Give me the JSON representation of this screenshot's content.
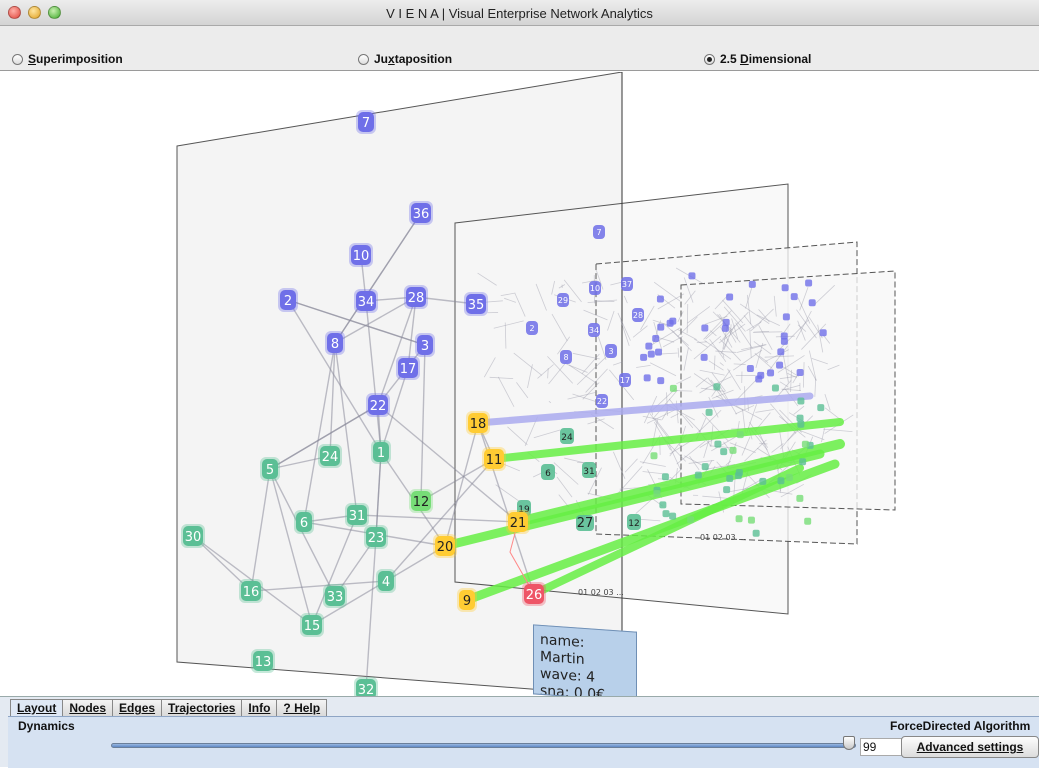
{
  "window": {
    "title": "V I E N A | Visual Enterprise Network Analytics"
  },
  "modes": [
    {
      "label_u": "S",
      "label_rest": "uperimposition",
      "selected": false
    },
    {
      "label_pre": "Ju",
      "label_u": "x",
      "label_rest": "taposition",
      "selected": false
    },
    {
      "label_pre": "2.5 ",
      "label_u": "D",
      "label_rest": "imensional",
      "selected": true
    }
  ],
  "tooltip": {
    "line1": "name: Martin",
    "line2": "wave: 4",
    "line3": "sna: 0.0€"
  },
  "colors": {
    "node_blue": "#6f6fe8",
    "node_teal": "#5bbf95",
    "node_lightgreen": "#77dd77",
    "node_yellow": "#ffcc33",
    "node_red": "#ee5566",
    "trajectory_green": "#66ee44",
    "trajectory_lavender": "#aaaaee",
    "accent": "#4f7fc4"
  },
  "network": {
    "front_layer": {
      "blue_nodes": [
        "7",
        "36",
        "10",
        "2",
        "34",
        "28",
        "35",
        "8",
        "3",
        "17",
        "22"
      ],
      "teal_nodes": [
        "24",
        "1",
        "5",
        "6",
        "31",
        "23",
        "4",
        "33",
        "30",
        "16",
        "15",
        "13",
        "32"
      ],
      "lightgreen_nodes": [
        "12"
      ],
      "yellow_nodes": [
        "18",
        "11",
        "21",
        "20",
        "9"
      ],
      "red_nodes": [
        "26"
      ]
    },
    "second_layer": {
      "blue_nodes": [
        "7",
        "29",
        "10",
        "37",
        "28",
        "2",
        "34",
        "8",
        "3",
        "17",
        "22"
      ],
      "teal_nodes": [
        "24",
        "6",
        "31",
        "19",
        "12",
        "27"
      ],
      "labels": [
        "01 02 03 ..."
      ]
    },
    "layer_labels": [
      "01 02 03 ...",
      "01 02 03 ..."
    ]
  },
  "bottom": {
    "tabs": [
      "Layout",
      "Nodes",
      "Edges",
      "Trajectories",
      "Info",
      "? Help"
    ],
    "active_tab": "Layout",
    "section_label": "Dynamics",
    "algorithm_label": "ForceDirected Algorithm",
    "slider_value": "99",
    "slider_fraction": 0.99,
    "advanced_button": "Advanced settings"
  }
}
